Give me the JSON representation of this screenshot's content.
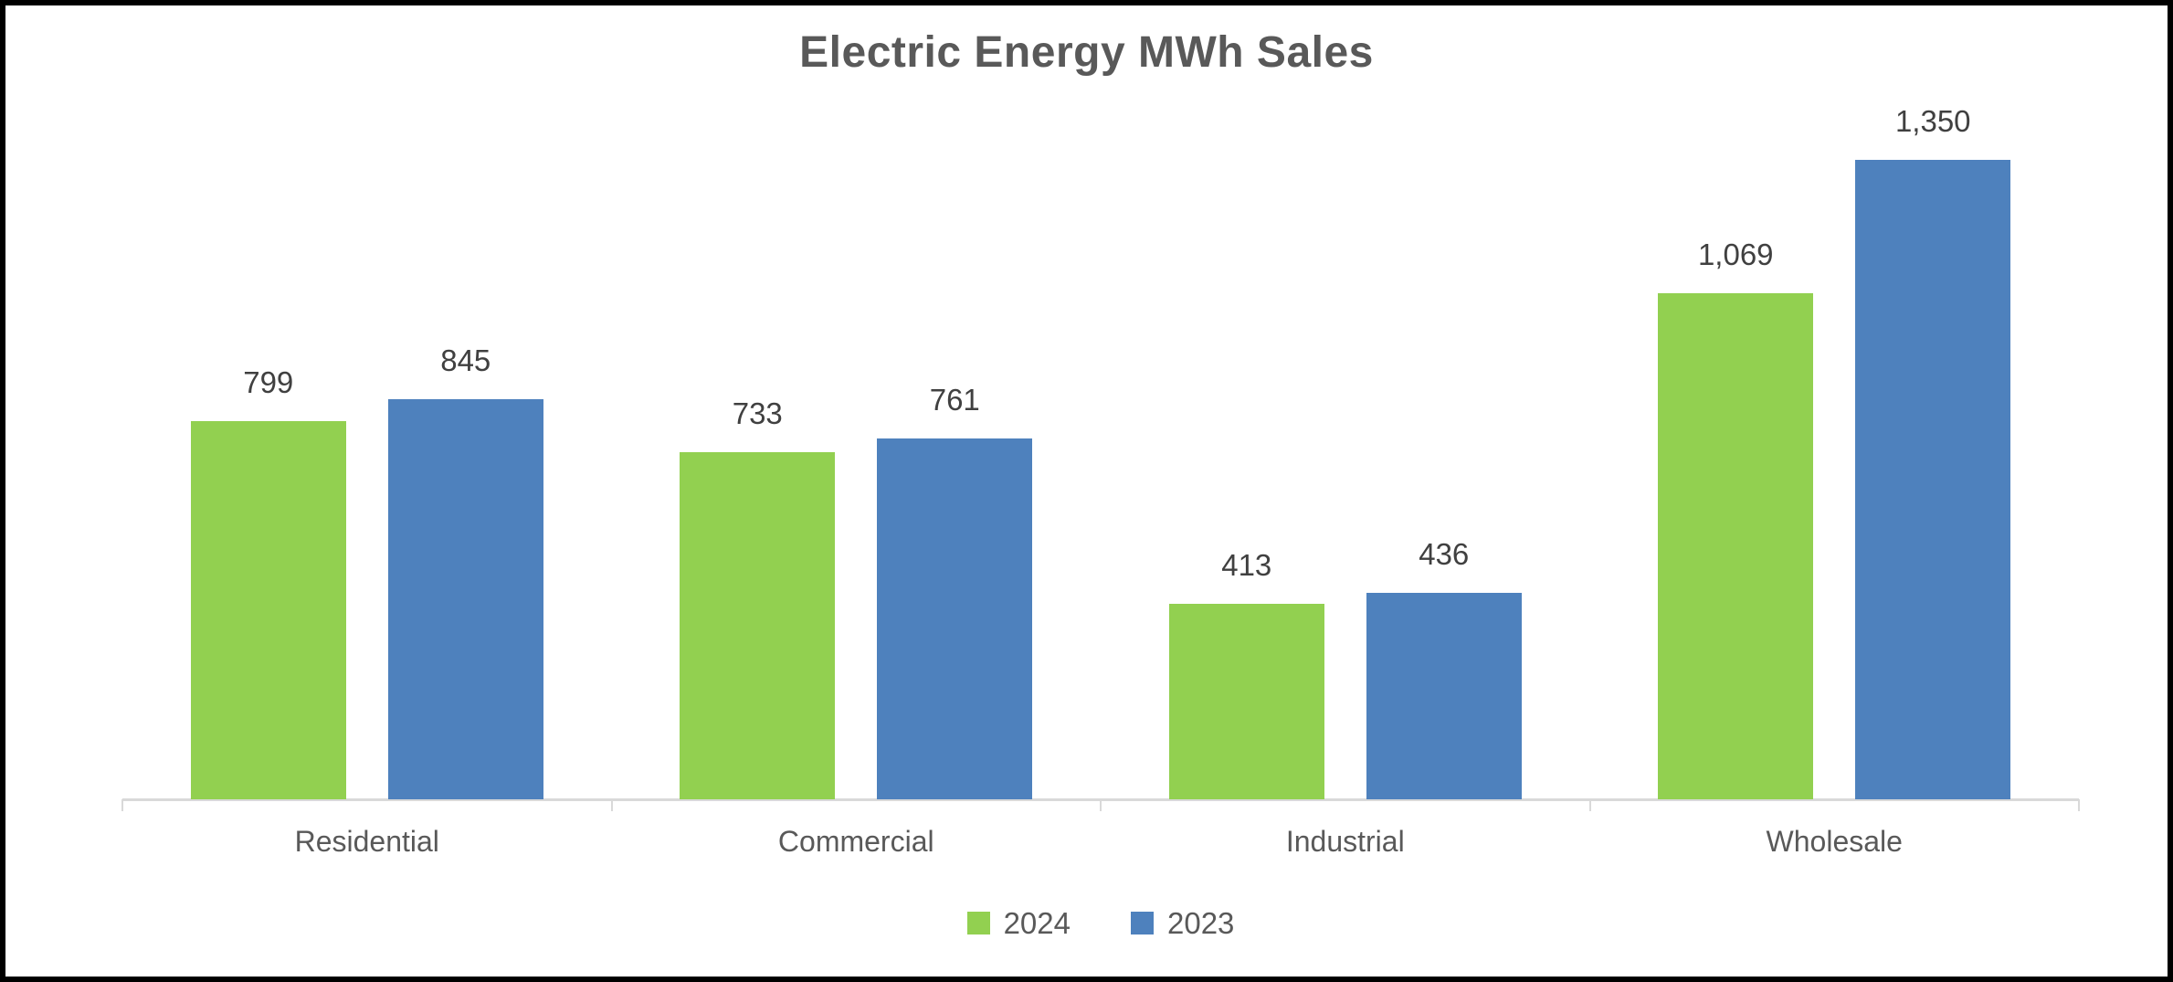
{
  "frame": {
    "background": "#ffffff",
    "border_color": "#000000"
  },
  "chart_data": {
    "type": "bar",
    "title": "Electric Energy MWh Sales",
    "xlabel": "",
    "ylabel": "",
    "categories": [
      "Residential",
      "Commercial",
      "Industrial",
      "Wholesale"
    ],
    "series": [
      {
        "name": "2024",
        "color": "#92d050",
        "values": [
          799,
          733,
          413,
          1069
        ],
        "labels": [
          "799",
          "733",
          "413",
          "1,069"
        ]
      },
      {
        "name": "2023",
        "color": "#4e81bd",
        "values": [
          845,
          761,
          436,
          1350
        ],
        "labels": [
          "845",
          "761",
          "436",
          "1,350"
        ]
      }
    ],
    "ylim": [
      0,
      1350
    ],
    "grid": false,
    "y_axis_visible": false,
    "legend_position": "bottom",
    "axis_color": "#d9d9d9",
    "data_label_color": "#404040",
    "text_color": "#595959"
  }
}
